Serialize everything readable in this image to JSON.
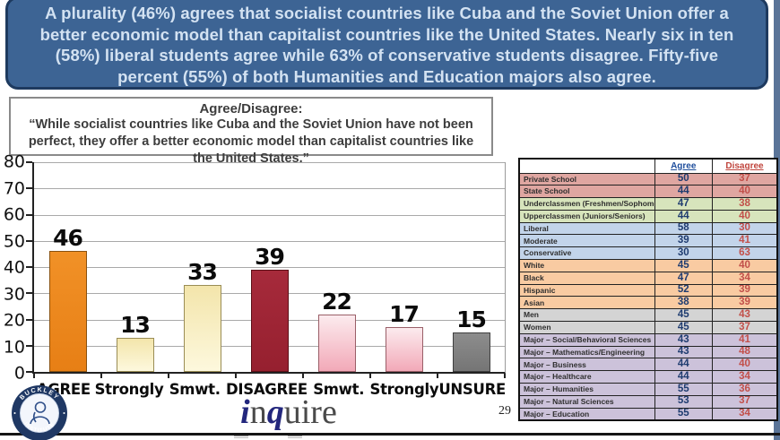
{
  "banner": {
    "text": "A plurality (46%) agrees that socialist countries like Cuba and the Soviet Union offer a better economic model than capitalist countries like the United States. Nearly six in ten (58%) liberal students agree while 63% of conservative students disagree. Fifty-five percent (55%) of both Humanities and Education majors also agree."
  },
  "question_box": {
    "title": "Agree/Disagree:",
    "quote": "“While socialist countries like Cuba and the Soviet Union have not been perfect, they offer a better economic model than capitalist countries like the United States.”"
  },
  "chart_data": {
    "type": "bar",
    "title": "Agree/Disagree: While socialist countries like Cuba and the Soviet Union have not been perfect, they offer a better economic model than capitalist countries like the United States.",
    "categories": [
      "AGREE",
      "Strongly",
      "Smwt.",
      "DISAGREE",
      "Smwt.",
      "Strongly",
      "UNSURE"
    ],
    "values": [
      46,
      13,
      33,
      39,
      22,
      17,
      15
    ],
    "bar_styles": [
      "orange",
      "cream",
      "cream",
      "darkred",
      "pink",
      "pink",
      "gray"
    ],
    "bar_colors": [
      "#ED8A1E",
      "#F6EBB8",
      "#F6EBB8",
      "#9E2535",
      "#F5BFCA",
      "#F5BFCA",
      "#7F7F7F"
    ],
    "ylim": [
      0,
      80
    ],
    "yticks": [
      0,
      10,
      20,
      30,
      40,
      50,
      60,
      70,
      80
    ],
    "grid": true,
    "legend": "none",
    "xlabel": "",
    "ylabel": ""
  },
  "table": {
    "header": {
      "agree": "Agree",
      "disagree": "Disagree"
    },
    "rows": [
      {
        "label": "Private School",
        "agree": 50,
        "disagree": 37,
        "group": "school"
      },
      {
        "label": "State School",
        "agree": 44,
        "disagree": 40,
        "group": "school"
      },
      {
        "label": "Underclassmen (Freshmen/Sophomores)",
        "agree": 47,
        "disagree": 38,
        "group": "class"
      },
      {
        "label": "Upperclassmen (Juniors/Seniors)",
        "agree": 44,
        "disagree": 40,
        "group": "class"
      },
      {
        "label": "Liberal",
        "agree": 58,
        "disagree": 30,
        "group": "politics"
      },
      {
        "label": "Moderate",
        "agree": 39,
        "disagree": 41,
        "group": "politics"
      },
      {
        "label": "Conservative",
        "agree": 30,
        "disagree": 63,
        "group": "politics"
      },
      {
        "label": "White",
        "agree": 45,
        "disagree": 40,
        "group": "race"
      },
      {
        "label": "Black",
        "agree": 47,
        "disagree": 34,
        "group": "race"
      },
      {
        "label": "Hispanic",
        "agree": 52,
        "disagree": 39,
        "group": "race"
      },
      {
        "label": "Asian",
        "agree": 38,
        "disagree": 39,
        "group": "race"
      },
      {
        "label": "Men",
        "agree": 45,
        "disagree": 43,
        "group": "gender"
      },
      {
        "label": "Women",
        "agree": 45,
        "disagree": 37,
        "group": "gender"
      },
      {
        "label": "Major – Social/Behavioral Sciences",
        "agree": 43,
        "disagree": 41,
        "group": "major"
      },
      {
        "label": "Major – Mathematics/Engineering",
        "agree": 43,
        "disagree": 48,
        "group": "major"
      },
      {
        "label": "Major – Business",
        "agree": 44,
        "disagree": 40,
        "group": "major"
      },
      {
        "label": "Major – Healthcare",
        "agree": 44,
        "disagree": 34,
        "group": "major"
      },
      {
        "label": "Major – Humanities",
        "agree": 55,
        "disagree": 36,
        "group": "major"
      },
      {
        "label": "Major – Natural Sciences",
        "agree": 53,
        "disagree": 37,
        "group": "major"
      },
      {
        "label": "Major – Education",
        "agree": 55,
        "disagree": 34,
        "group": "major"
      }
    ]
  },
  "footer": {
    "page_number": "29",
    "brand_parts": {
      "i": "i",
      "n": "n",
      "q": "q",
      "uire": "uire"
    },
    "institute": {
      "top": "BUCKLEY",
      "bottom": "INSTITUTE"
    }
  },
  "colors": {
    "banner_bg": "#3D6494",
    "banner_border": "#1E3A5F",
    "banner_text": "#D3E2F2",
    "agree_number": "#1F3C70",
    "disagree_number": "#C2504A",
    "group_school": "#DFA6A1",
    "group_class": "#D7E4BC",
    "group_politics": "#C2D4EA",
    "group_race": "#F9CBA2",
    "group_gender": "#D4D4D4",
    "group_major": "#CCC2DA"
  }
}
